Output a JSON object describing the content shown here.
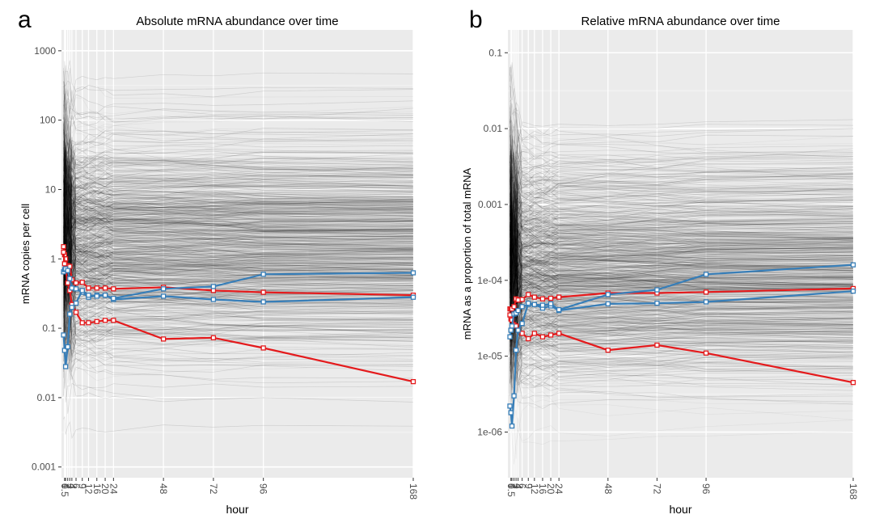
{
  "panels": [
    {
      "letter": "a",
      "chart_data": {
        "type": "line",
        "title": "Absolute mRNA abundance over time",
        "xlabel": "hour",
        "ylabel": "mRNA copies per cell",
        "y_scale": "log",
        "xlim": [
          -1,
          168
        ],
        "ylim": [
          0.0007,
          2000
        ],
        "x_ticks": [
          0.5,
          1,
          2,
          3,
          4,
          6,
          9,
          12,
          16,
          20,
          24,
          48,
          72,
          96,
          168
        ],
        "x_tick_labels": [
          "0.5",
          "1",
          "2",
          "3",
          "4",
          "6",
          "9",
          "12",
          "16",
          "20",
          "24",
          "48",
          "72",
          "96",
          "168"
        ],
        "y_ticks": [
          0.001,
          0.01,
          0.1,
          1,
          10,
          100,
          1000
        ],
        "y_tick_labels": [
          "0.001",
          "0.01",
          "0.1",
          "1",
          "10",
          "100",
          "1000"
        ],
        "grid": true,
        "legend": "none",
        "background": "#ebebeb",
        "series": [
          {
            "color": "#e41a1c",
            "marker": "open-square",
            "x": [
              0,
              0.5,
              1,
              2,
              3,
              4,
              6,
              9,
              12,
              16,
              20,
              24,
              48,
              72,
              96,
              168
            ],
            "y": [
              1.5,
              1.15,
              1.0,
              0.8,
              0.78,
              0.5,
              0.45,
              0.46,
              0.38,
              0.38,
              0.38,
              0.37,
              0.39,
              0.35,
              0.33,
              0.3
            ]
          },
          {
            "color": "#e41a1c",
            "marker": "open-square",
            "x": [
              0,
              0.5,
              1,
              2,
              3,
              4,
              6,
              9,
              12,
              16,
              20,
              24,
              48,
              72,
              96,
              168
            ],
            "y": [
              1.25,
              0.85,
              0.7,
              0.45,
              0.35,
              0.22,
              0.17,
              0.12,
              0.12,
              0.125,
              0.13,
              0.13,
              0.07,
              0.073,
              0.052,
              0.017
            ]
          },
          {
            "color": "#377eb8",
            "marker": "open-square",
            "x": [
              0,
              0.5,
              1,
              2,
              3,
              4,
              6,
              9,
              12,
              16,
              20,
              24,
              48,
              72,
              96,
              168
            ],
            "y": [
              0.65,
              0.7,
              0.72,
              0.68,
              0.52,
              0.38,
              0.37,
              0.33,
              0.28,
              0.3,
              0.3,
              0.26,
              0.29,
              0.26,
              0.24,
              0.28
            ]
          },
          {
            "color": "#377eb8",
            "marker": "open-square",
            "x": [
              0,
              0.5,
              1,
              2,
              3,
              4,
              6,
              9,
              12,
              16,
              20,
              24,
              48,
              72,
              96,
              168
            ],
            "y": [
              0.08,
              0.048,
              0.028,
              0.054,
              0.16,
              0.2,
              0.23,
              0.35,
              0.3,
              0.29,
              0.3,
              0.27,
              0.37,
              0.4,
              0.6,
              0.63
            ]
          }
        ]
      }
    },
    {
      "letter": "b",
      "chart_data": {
        "type": "line",
        "title": "Relative mRNA abundance over time",
        "xlabel": "hour",
        "ylabel": "mRNA as a proportion of total mRNA",
        "y_scale": "log",
        "xlim": [
          -1,
          168
        ],
        "ylim": [
          2.5e-07,
          0.2
        ],
        "x_ticks": [
          0.5,
          1,
          2,
          3,
          4,
          6,
          9,
          12,
          16,
          20,
          24,
          48,
          72,
          96,
          168
        ],
        "x_tick_labels": [
          "0.5",
          "1",
          "2",
          "3",
          "4",
          "6",
          "9",
          "12",
          "16",
          "20",
          "24",
          "48",
          "72",
          "96",
          "168"
        ],
        "y_ticks": [
          1e-06,
          1e-05,
          0.0001,
          0.001,
          0.01,
          0.1
        ],
        "y_tick_labels": [
          "1e-06",
          "1e-05",
          "1e-04",
          "0.001",
          "0.01",
          "0.1"
        ],
        "grid": true,
        "legend": "none",
        "background": "#ebebeb",
        "series": [
          {
            "color": "#e41a1c",
            "marker": "open-square",
            "x": [
              0,
              0.5,
              1,
              2,
              3,
              4,
              6,
              9,
              12,
              16,
              20,
              24,
              48,
              72,
              96,
              168
            ],
            "y": [
              4.2e-05,
              4.2e-05,
              4.2e-05,
              4.5e-05,
              5.7e-05,
              5.5e-05,
              5.6e-05,
              6.5e-05,
              6e-05,
              5.7e-05,
              5.8e-05,
              6e-05,
              6.8e-05,
              6.8e-05,
              7e-05,
              7.8e-05
            ]
          },
          {
            "color": "#e41a1c",
            "marker": "open-square",
            "x": [
              0,
              0.5,
              1,
              2,
              3,
              4,
              6,
              9,
              12,
              16,
              20,
              24,
              48,
              72,
              96,
              168
            ],
            "y": [
              3.5e-05,
              3.1e-05,
              3e-05,
              2.6e-05,
              2.5e-05,
              2.2e-05,
              2e-05,
              1.7e-05,
              2e-05,
              1.8e-05,
              1.9e-05,
              2e-05,
              1.2e-05,
              1.4e-05,
              1.1e-05,
              4.5e-06
            ]
          },
          {
            "color": "#377eb8",
            "marker": "open-square",
            "x": [
              0,
              0.5,
              1,
              2,
              3,
              4,
              6,
              9,
              12,
              16,
              20,
              24,
              48,
              72,
              96,
              168
            ],
            "y": [
              1.8e-05,
              2.2e-05,
              2.5e-05,
              3.6e-05,
              3.7e-05,
              4e-05,
              4.5e-05,
              4.8e-05,
              4.8e-05,
              4.3e-05,
              4.6e-05,
              4e-05,
              4.9e-05,
              5e-05,
              5.2e-05,
              7.2e-05
            ]
          },
          {
            "color": "#377eb8",
            "marker": "open-square",
            "x": [
              0,
              0.5,
              1,
              2,
              3,
              4,
              6,
              9,
              12,
              16,
              20,
              24,
              48,
              72,
              96,
              168
            ],
            "y": [
              2.2e-06,
              1.8e-06,
              1.2e-06,
              3e-06,
              1.2e-05,
              2.2e-05,
              2.7e-05,
              5e-05,
              4.8e-05,
              4.7e-05,
              4.9e-05,
              4.1e-05,
              6.5e-05,
              7.5e-05,
              0.00012,
              0.00016
            ]
          }
        ]
      }
    }
  ]
}
